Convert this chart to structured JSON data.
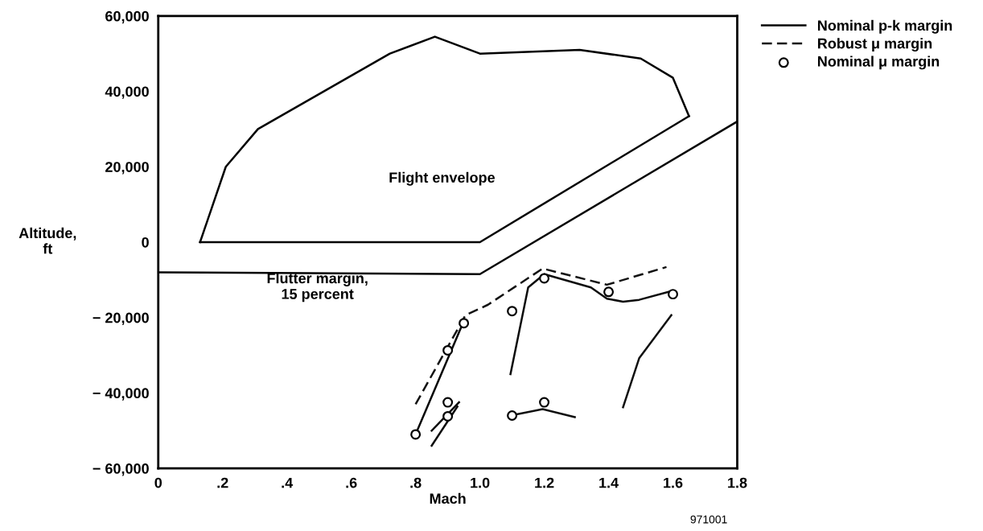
{
  "chart_data": {
    "type": "line",
    "xlabel": "Mach",
    "ylabel": "Altitude,\nft",
    "xlim": [
      0,
      1.8
    ],
    "ylim": [
      -60000,
      60000
    ],
    "xticks": [
      0,
      {
        "value": 0.2,
        "label": ".2"
      },
      {
        "value": 0.4,
        "label": ".4"
      },
      {
        "value": 0.6,
        "label": ".6"
      },
      {
        "value": 0.8,
        "label": ".8"
      },
      {
        "value": 1.0,
        "label": "1.0"
      },
      {
        "value": 1.2,
        "label": "1.2"
      },
      {
        "value": 1.4,
        "label": "1.4"
      },
      {
        "value": 1.6,
        "label": "1.6"
      },
      {
        "value": 1.8,
        "label": "1.8"
      }
    ],
    "yticks": [
      {
        "value": -60000,
        "label": "− 60,000"
      },
      {
        "value": -40000,
        "label": "− 40,000"
      },
      {
        "value": -20000,
        "label": "− 20,000"
      },
      0,
      {
        "value": 20000,
        "label": "20,000"
      },
      {
        "value": 40000,
        "label": "40,000"
      },
      {
        "value": 60000,
        "label": "60,000"
      }
    ],
    "grid": false,
    "legend": "top right",
    "annotations": [
      "Flight envelope",
      "Flutter margin,\n15 percent",
      "971001"
    ],
    "series": [
      {
        "color": "#000000",
        "line_style": "solid",
        "marker": "none",
        "x": [
          0.13,
          0.21,
          0.31,
          0.72,
          0.86,
          1.0,
          1.31,
          1.5,
          1.6,
          1.65
        ],
        "values": [
          0,
          20000,
          30000,
          50000,
          54500,
          50000,
          51000,
          48700,
          43600,
          33400
        ]
      },
      {
        "color": "#020202",
        "line_style": "solid",
        "marker": "none",
        "x": [
          0.13,
          1.0,
          1.65
        ],
        "values": [
          0,
          0,
          33400
        ]
      },
      {
        "color": "#040404",
        "line_style": "solid",
        "marker": "none",
        "x": [
          0,
          1.0,
          1.8
        ],
        "values": [
          -8000,
          -8500,
          32000
        ]
      },
      {
        "name": "Nominal p-k margin",
        "color": "#060606",
        "line_style": "solid",
        "marker": "none",
        "x": [
          0.8,
          0.95
        ],
        "values": [
          -51000,
          -20900
        ]
      },
      {
        "color": "#080808",
        "line_style": "solid",
        "marker": "none",
        "x": [
          0.85,
          0.935
        ],
        "values": [
          -50000,
          -42500
        ]
      },
      {
        "color": "#0a0a0a",
        "line_style": "solid",
        "marker": "none",
        "x": [
          0.85,
          0.93
        ],
        "values": [
          -54000,
          -43600
        ]
      },
      {
        "color": "#0c0c0c",
        "line_style": "solid",
        "marker": "none",
        "x": [
          1.095,
          1.15,
          1.2,
          1.345,
          1.395,
          1.445,
          1.495,
          1.595
        ],
        "values": [
          -35000,
          -12000,
          -8500,
          -12000,
          -15000,
          -15800,
          -15300,
          -13000
        ]
      },
      {
        "color": "#0e0e0e",
        "line_style": "solid",
        "marker": "none",
        "x": [
          1.095,
          1.195,
          1.295
        ],
        "values": [
          -46000,
          -44300,
          -46400
        ]
      },
      {
        "color": "#101010",
        "line_style": "solid",
        "marker": "none",
        "x": [
          1.445,
          1.495,
          1.595
        ],
        "values": [
          -43800,
          -30800,
          -19400
        ]
      },
      {
        "name": "Robust μ margin",
        "color": "#121212",
        "line_style": "dashed",
        "marker": "none",
        "x": [
          0.8,
          0.955,
          1.025,
          1.195,
          1.395,
          1.58
        ],
        "values": [
          -43000,
          -19400,
          -16600,
          -7000,
          -11300,
          -6600
        ]
      },
      {
        "type": "scatter",
        "name": "Nominal μ margin",
        "color": "#000000",
        "marker": "circle",
        "x": [
          0.8,
          0.9,
          0.95,
          0.9,
          0.9,
          1.1,
          1.2,
          1.4,
          1.6,
          1.1,
          1.2
        ],
        "values": [
          -51000,
          -28700,
          -21500,
          -42500,
          -46200,
          -18300,
          -9600,
          -13200,
          -13800,
          -46000,
          -42500
        ]
      }
    ]
  }
}
